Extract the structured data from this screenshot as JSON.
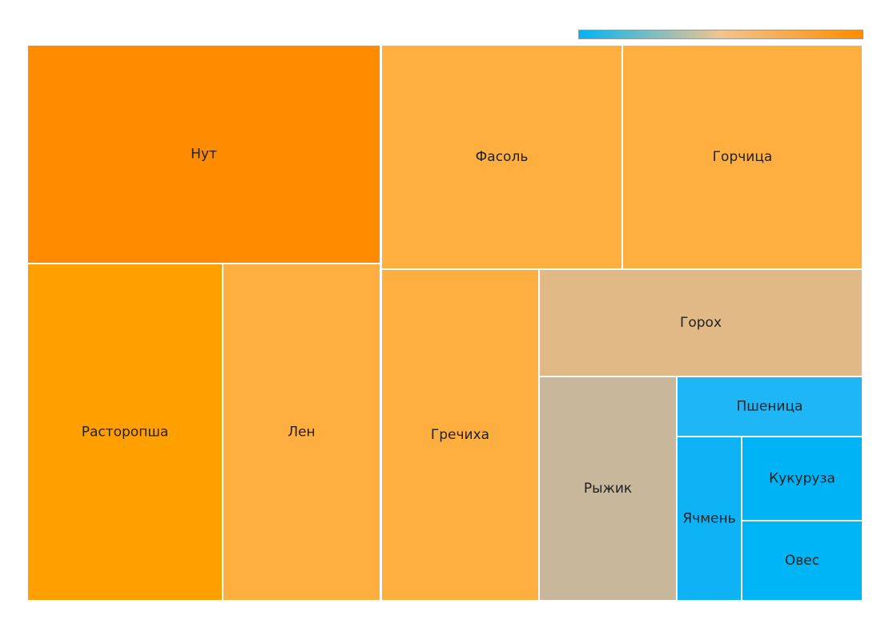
{
  "chart_data": {
    "type": "treemap",
    "color_scale": {
      "low": "#00b5f5",
      "mid": "#f2c490",
      "high": "#ff8c00"
    },
    "items": [
      {
        "label": "Нут",
        "group": "left",
        "color": "#ff8c00"
      },
      {
        "label": "Расторопша",
        "group": "left",
        "color": "#ff9f00"
      },
      {
        "label": "Лен",
        "group": "left",
        "color": "#ffae40"
      },
      {
        "label": "Фасоль",
        "group": "right",
        "color": "#ffae40"
      },
      {
        "label": "Горчица",
        "group": "right",
        "color": "#ffae40"
      },
      {
        "label": "Гречиха",
        "group": "right",
        "color": "#ffae40"
      },
      {
        "label": "Горох",
        "group": "right",
        "color": "#e1b986"
      },
      {
        "label": "Рыжик",
        "group": "right",
        "color": "#c9b79c"
      },
      {
        "label": "Пшеница",
        "group": "right",
        "color": "#1fb6f5"
      },
      {
        "label": "Ячмень",
        "group": "right",
        "color": "#0db3f5"
      },
      {
        "label": "Кукуруза",
        "group": "right",
        "color": "#00b3f5"
      },
      {
        "label": "Овес",
        "group": "right",
        "color": "#00b5f5"
      }
    ]
  }
}
